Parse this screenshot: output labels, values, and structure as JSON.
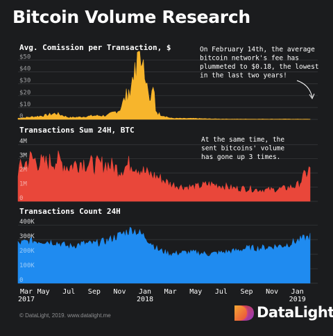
{
  "title": "Bitcoin Volume Research",
  "footer": {
    "copyright": "© DataLight, 2019. www.datalight.me",
    "brand": "DataLight"
  },
  "colors": {
    "background": "#1b1c1e",
    "fee": "#f7b52c",
    "sum": "#e9473a",
    "count": "#1f8bf0",
    "grid": "#3a3b3e",
    "tick_text": "#8a8b8d",
    "annotation_text": "#ffffff"
  },
  "x_axis": {
    "ticks": [
      {
        "label": "Mar",
        "year": "2017"
      },
      {
        "label": "May",
        "year": ""
      },
      {
        "label": "Jul",
        "year": ""
      },
      {
        "label": "Sep",
        "year": ""
      },
      {
        "label": "Nov",
        "year": ""
      },
      {
        "label": "Jan",
        "year": "2018"
      },
      {
        "label": "Mar",
        "year": ""
      },
      {
        "label": "May",
        "year": ""
      },
      {
        "label": "Jul",
        "year": ""
      },
      {
        "label": "Sep",
        "year": ""
      },
      {
        "label": "Nov",
        "year": ""
      },
      {
        "label": "Jan",
        "year": "2019"
      }
    ]
  },
  "chart_data": [
    {
      "type": "area",
      "title": "Avg. Comission per Transaction, $",
      "yticks": [
        "0",
        "$10",
        "$20",
        "$30",
        "$40",
        "$50"
      ],
      "ylim": [
        0,
        55
      ],
      "annotation": [
        "On February 14th, the average",
        "bitcoin network's fee has",
        "plummeted to $0.18, the lowest",
        "in the last two years!"
      ],
      "x": [
        "2017-03",
        "2017-04",
        "2017-05",
        "2017-06",
        "2017-07",
        "2017-08",
        "2017-09",
        "2017-10",
        "2017-11",
        "2017-12",
        "2018-01",
        "2018-02",
        "2018-03",
        "2018-04",
        "2018-05",
        "2018-06",
        "2018-07",
        "2018-08",
        "2018-09",
        "2018-10",
        "2018-11",
        "2018-12",
        "2019-01",
        "2019-02"
      ],
      "series": [
        {
          "values": [
            1,
            2,
            3,
            5,
            1.5,
            2,
            3,
            3,
            8,
            30,
            25,
            5,
            1,
            0.8,
            0.8,
            0.5,
            0.4,
            0.3,
            0.3,
            0.3,
            0.3,
            0.3,
            0.25,
            0.18
          ]
        }
      ]
    },
    {
      "type": "area",
      "title": "Transactions Sum 24H, BTC",
      "yticks": [
        "0",
        "1M",
        "2M",
        "3M",
        "4M"
      ],
      "ylim": [
        0,
        4.5
      ],
      "annotation": [
        "At the same time, the",
        "sent bitcoins' volume",
        "has gone up 3 times."
      ],
      "x": [
        "2017-03",
        "2017-04",
        "2017-05",
        "2017-06",
        "2017-07",
        "2017-08",
        "2017-09",
        "2017-10",
        "2017-11",
        "2017-12",
        "2018-01",
        "2018-02",
        "2018-03",
        "2018-04",
        "2018-05",
        "2018-06",
        "2018-07",
        "2018-08",
        "2018-09",
        "2018-10",
        "2018-11",
        "2018-12",
        "2019-01",
        "2019-02"
      ],
      "series": [
        {
          "values": [
            2.2,
            3.0,
            2.6,
            2.9,
            2.4,
            2.8,
            2.5,
            2.6,
            2.2,
            2.7,
            2.0,
            1.7,
            1.2,
            1.0,
            1.0,
            1.2,
            1.1,
            0.9,
            0.9,
            0.8,
            0.8,
            0.9,
            1.1,
            2.3
          ]
        }
      ]
    },
    {
      "type": "area",
      "title": "Transactions Count 24H",
      "yticks": [
        "0",
        "100K",
        "200K",
        "300K",
        "400K"
      ],
      "ylim": [
        0,
        420000
      ],
      "x": [
        "2017-03",
        "2017-04",
        "2017-05",
        "2017-06",
        "2017-07",
        "2017-08",
        "2017-09",
        "2017-10",
        "2017-11",
        "2017-12",
        "2018-01",
        "2018-02",
        "2018-03",
        "2018-04",
        "2018-05",
        "2018-06",
        "2018-07",
        "2018-08",
        "2018-09",
        "2018-10",
        "2018-11",
        "2018-12",
        "2019-01",
        "2019-02"
      ],
      "series": [
        {
          "values": [
            270000,
            290000,
            290000,
            280000,
            250000,
            270000,
            270000,
            290000,
            330000,
            370000,
            320000,
            230000,
            200000,
            210000,
            210000,
            200000,
            210000,
            220000,
            240000,
            240000,
            250000,
            260000,
            290000,
            320000
          ]
        }
      ]
    }
  ]
}
